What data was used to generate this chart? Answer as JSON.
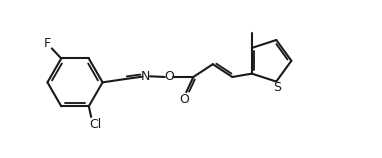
{
  "bg_color": "#ffffff",
  "line_color": "#1a1a1a",
  "line_width": 1.5,
  "font_size": 9.0,
  "figsize": [
    3.82,
    1.58
  ],
  "dpi": 100,
  "xlim": [
    -0.5,
    10.5
  ],
  "ylim": [
    -0.2,
    4.5
  ]
}
